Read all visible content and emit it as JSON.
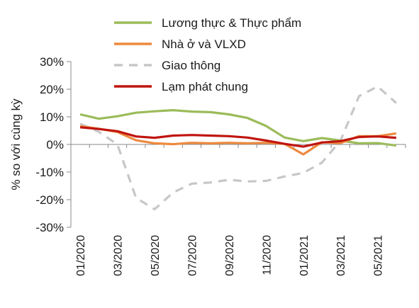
{
  "chart_data": {
    "type": "line",
    "ylabel": "% so với cùng kỳ",
    "xlabel": "",
    "ylim": [
      -30,
      30
    ],
    "y_ticks": [
      "30%",
      "20%",
      "10%",
      "0%",
      "-10%",
      "-20%",
      "-30%"
    ],
    "x": [
      "01/2020",
      "02/2020",
      "03/2020",
      "04/2020",
      "05/2020",
      "06/2020",
      "07/2020",
      "08/2020",
      "09/2020",
      "10/2020",
      "11/2020",
      "12/2020",
      "01/2021",
      "02/2021",
      "03/2021",
      "04/2021",
      "05/2021",
      "06/2021"
    ],
    "x_tick_labels": [
      "01/2020",
      "03/2020",
      "05/2020",
      "07/2020",
      "09/2020",
      "11/2020",
      "01/2021",
      "03/2021",
      "05/2021"
    ],
    "legend_position": "top-right",
    "grid": false,
    "series": [
      {
        "name": "Lương thực & Thực phẩm",
        "color": "#9bbb59",
        "dash": "solid",
        "values": [
          10.9,
          9.3,
          10.2,
          11.5,
          12.0,
          12.4,
          11.9,
          11.7,
          10.9,
          9.6,
          6.7,
          2.5,
          1.2,
          2.3,
          1.4,
          0.4,
          0.5,
          -0.4
        ]
      },
      {
        "name": "Nhà ở và VLXD",
        "color": "#ed8a3f",
        "dash": "solid",
        "values": [
          6.6,
          5.7,
          4.5,
          1.5,
          0.4,
          0.1,
          0.6,
          0.4,
          0.6,
          0.4,
          0.6,
          0.2,
          -3.6,
          0.8,
          0.5,
          3.0,
          3.0,
          4.0
        ]
      },
      {
        "name": "Giao thông",
        "color": "#c7c7c7",
        "dash": "dashed",
        "values": [
          7.5,
          4.6,
          0.0,
          -19.3,
          -23.5,
          -17.4,
          -14.2,
          -13.8,
          -12.8,
          -13.4,
          -13.2,
          -11.6,
          -10.3,
          -6.6,
          1.3,
          17.5,
          21.0,
          15.0
        ]
      },
      {
        "name": "Lạm phát chung",
        "color": "#c0150f",
        "dash": "solid",
        "values": [
          6.2,
          5.6,
          4.8,
          2.9,
          2.4,
          3.2,
          3.4,
          3.2,
          3.0,
          2.5,
          1.4,
          0.2,
          -0.8,
          0.7,
          1.2,
          2.7,
          2.9,
          2.4
        ]
      }
    ]
  }
}
